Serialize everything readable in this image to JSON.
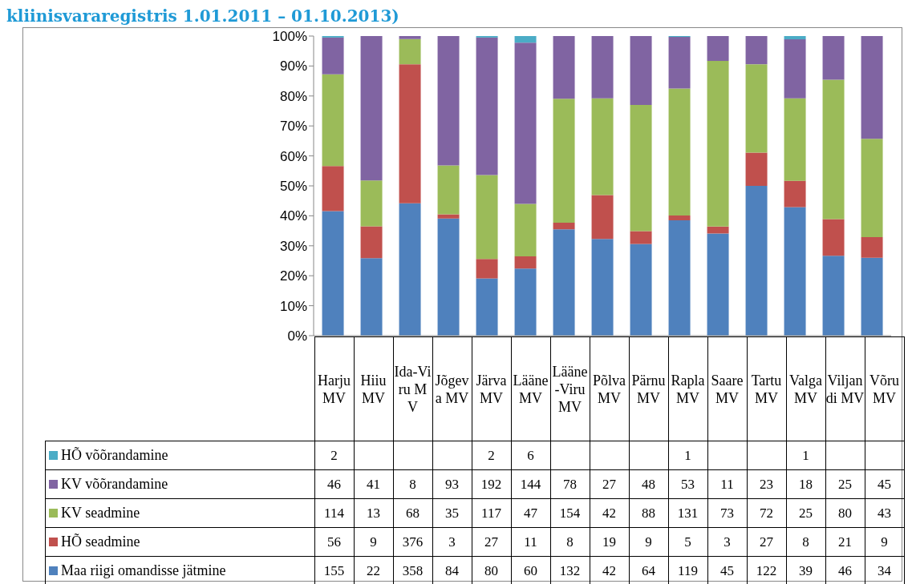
{
  "chart_data": {
    "type": "bar",
    "stacked": true,
    "title": "kliinisvararegistris 1.01.2011 – 01.10.2013)",
    "categories": [
      "Harju MV",
      "Hiiu MV",
      "Ida-Viru MV",
      "Jõgeva MV",
      "Järva MV",
      "Lääne MV",
      "Lääne-Viru MV",
      "Põlva MV",
      "Pärnu MV",
      "Rapla MV",
      "Saare MV",
      "Tartu MV",
      "Valga MV",
      "Viljandi MV",
      "Võru MV"
    ],
    "series": [
      {
        "name": "Maa riigi omandisse jätmine",
        "color": "#4f81bd",
        "values": [
          41.6,
          25.9,
          44.2,
          39.1,
          19.1,
          22.4,
          35.5,
          32.3,
          30.6,
          38.5,
          34.1,
          50.0,
          42.9,
          26.7,
          26.0
        ]
      },
      {
        "name": "HÕ seadmine",
        "color": "#c0504d",
        "values": [
          15.0,
          10.6,
          46.4,
          1.4,
          6.5,
          4.1,
          2.2,
          14.6,
          4.3,
          1.6,
          2.3,
          11.1,
          8.8,
          12.2,
          6.9
        ]
      },
      {
        "name": "KV seadmine",
        "color": "#9bbb59",
        "values": [
          30.6,
          15.3,
          8.4,
          16.3,
          28.0,
          17.5,
          41.4,
          32.3,
          42.1,
          42.4,
          55.3,
          29.5,
          27.5,
          46.5,
          32.8
        ]
      },
      {
        "name": "KV võõrandamine",
        "color": "#8064a2",
        "values": [
          12.3,
          48.2,
          1.0,
          43.2,
          45.9,
          53.8,
          20.9,
          20.8,
          23.0,
          17.2,
          8.3,
          9.4,
          19.7,
          14.6,
          34.3
        ]
      },
      {
        "name": "HÕ võõrandamine",
        "color": "#4bacc6",
        "values": [
          0.5,
          null,
          null,
          null,
          0.5,
          2.2,
          null,
          null,
          null,
          0.3,
          null,
          null,
          1.1,
          null,
          null
        ]
      }
    ],
    "annotations": [
      "2",
      "2",
      "6",
      "1",
      "1",
      "46",
      "41",
      "8",
      "93",
      "192",
      "144",
      "78",
      "27",
      "48",
      "53",
      "11",
      "23",
      "18",
      "25",
      "45",
      "114",
      "13",
      "68",
      "35",
      "117",
      "47",
      "154",
      "42",
      "88",
      "131",
      "73",
      "72",
      "25",
      "80",
      "43",
      "56",
      "9",
      "376",
      "3",
      "27",
      "11",
      "8",
      "19",
      "9",
      "5",
      "3",
      "27",
      "8",
      "21",
      "9",
      "155",
      "22",
      "358",
      "84",
      "80",
      "60",
      "132",
      "42",
      "64",
      "119",
      "45",
      "122",
      "39",
      "46",
      "34"
    ],
    "ylim": [
      0,
      100
    ],
    "yticks": [
      {
        "value": 0,
        "label": "0%"
      },
      {
        "value": 10,
        "label": "10%"
      },
      {
        "value": 20,
        "label": "20%"
      },
      {
        "value": 30,
        "label": "30%"
      },
      {
        "value": 40,
        "label": "40%"
      },
      {
        "value": 50,
        "label": "50%"
      },
      {
        "value": 60,
        "label": "60%"
      },
      {
        "value": 70,
        "label": "70%"
      },
      {
        "value": 80,
        "label": "80%"
      },
      {
        "value": 90,
        "label": "90%"
      },
      {
        "value": 100,
        "label": "100%"
      }
    ],
    "legend": "bottom"
  }
}
